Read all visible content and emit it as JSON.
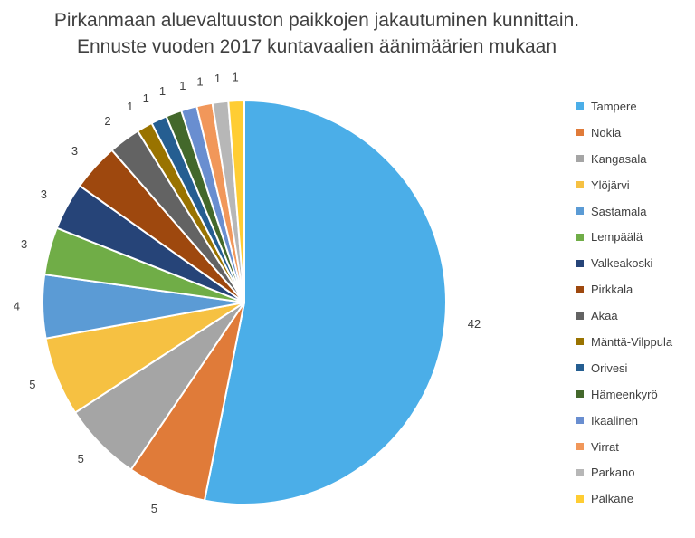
{
  "chart_data": {
    "type": "pie",
    "title": "Pirkanmaan aluevaltuuston paikkojen jakautuminen kunnittain.",
    "subtitle": "Ennuste vuoden 2017 kuntavaalien äänimäärien mukaan",
    "legend_position": "right",
    "slices": [
      {
        "label": "Tampere",
        "value": 42,
        "value_label": "42",
        "color": "#4BAEE8"
      },
      {
        "label": "Nokia",
        "value": 5,
        "value_label": "5",
        "color": "#E07B39"
      },
      {
        "label": "Kangasala",
        "value": 5,
        "value_label": "5",
        "color": "#A5A5A5"
      },
      {
        "label": "Ylöjärvi",
        "value": 5,
        "value_label": "5",
        "color": "#F6C142"
      },
      {
        "label": "Sastamala",
        "value": 4,
        "value_label": "4",
        "color": "#5B9BD5"
      },
      {
        "label": "Lempäälä",
        "value": 3,
        "value_label": "3",
        "color": "#70AD47"
      },
      {
        "label": "Valkeakoski",
        "value": 3,
        "value_label": "3",
        "color": "#264478"
      },
      {
        "label": "Pirkkala",
        "value": 3,
        "value_label": "3",
        "color": "#9E480E"
      },
      {
        "label": "Akaa",
        "value": 2,
        "value_label": "2",
        "color": "#636363"
      },
      {
        "label": "Mänttä-Vilppula",
        "value": 1,
        "value_label": "1",
        "color": "#997300"
      },
      {
        "label": "Orivesi",
        "value": 1,
        "value_label": "1",
        "color": "#255E91"
      },
      {
        "label": "Hämeenkyrö",
        "value": 1,
        "value_label": "1",
        "color": "#43682B"
      },
      {
        "label": "Ikaalinen",
        "value": 1,
        "value_label": "1",
        "color": "#698ED0"
      },
      {
        "label": "Virrat",
        "value": 1,
        "value_label": "1",
        "color": "#F1975A"
      },
      {
        "label": "Parkano",
        "value": 1,
        "value_label": "1",
        "color": "#B7B7B7"
      },
      {
        "label": "Pälkäne",
        "value": 1,
        "value_label": "1",
        "color": "#FFCD33"
      }
    ]
  }
}
